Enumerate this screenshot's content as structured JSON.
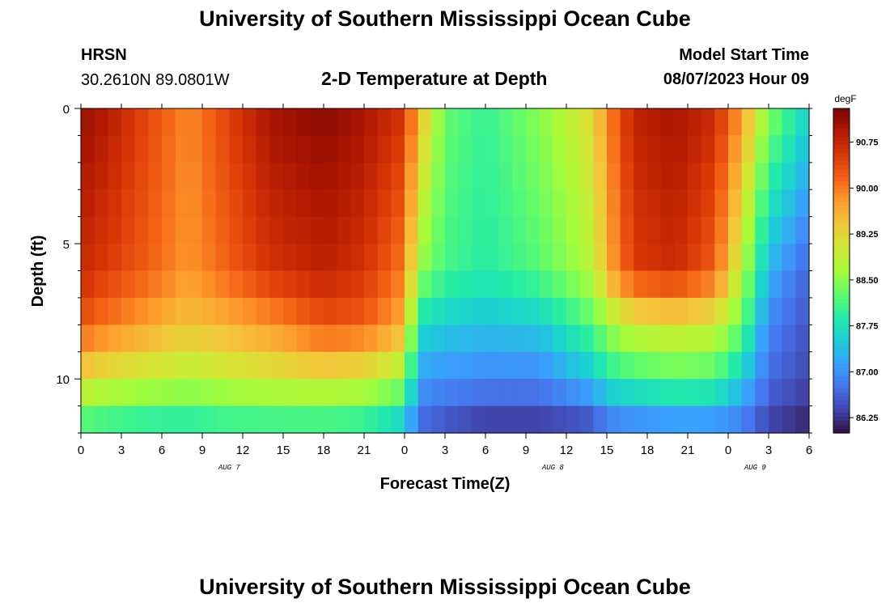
{
  "page": {
    "title_top": "University of Southern Mississippi Ocean Cube",
    "title_bottom": "University of Southern Mississippi Ocean Cube",
    "station": "HRSN",
    "coords": "30.2610N  89.0801W",
    "plot_title": "2-D Temperature at Depth",
    "model_start_label": "Model Start Time",
    "model_start_value": "08/07/2023 Hour 09"
  },
  "chart_data": {
    "type": "heatmap",
    "title": "2-D Temperature at Depth",
    "xlabel": "Forecast Time(Z)",
    "ylabel": "Depth (ft)",
    "colorbar_label": "degF",
    "x_hours": {
      "start": 0,
      "end": 54,
      "step": 1
    },
    "xlim": [
      0,
      54
    ],
    "ylim": [
      0,
      12
    ],
    "x_tick_labels": [
      "0",
      "3",
      "6",
      "9",
      "12",
      "15",
      "18",
      "21",
      "0",
      "3",
      "6",
      "9",
      "12",
      "15",
      "18",
      "21",
      "0",
      "3",
      "6"
    ],
    "date_labels": [
      {
        "hour": 11,
        "label": "AUG 7"
      },
      {
        "hour": 35,
        "label": "AUG 8"
      },
      {
        "hour": 50,
        "label": "AUG 9"
      }
    ],
    "y_ticks": [
      {
        "value": 0,
        "label": "0"
      },
      {
        "value": 5,
        "label": "5"
      },
      {
        "value": 10,
        "label": "10"
      }
    ],
    "depth_levels": [
      0,
      1,
      2,
      3,
      4,
      5,
      6,
      7,
      8,
      9,
      10,
      11,
      12
    ],
    "temperature_range": [
      86.0,
      91.3
    ],
    "colorbar_ticks": [
      "86.25",
      "87.00",
      "87.75",
      "88.50",
      "89.25",
      "90.00",
      "90.75"
    ],
    "colorbar_values": [
      86.25,
      87.0,
      87.75,
      88.5,
      89.25,
      90.0,
      90.75
    ],
    "colorbar_colors": [
      "#30123b",
      "#4145ab",
      "#4675ed",
      "#39a2fc",
      "#1bcfd4",
      "#24eca6",
      "#61fc6c",
      "#a4fc3b",
      "#d1e834",
      "#f3c63a",
      "#fe9b2d",
      "#f36315",
      "#d93806",
      "#b11901",
      "#7a0402"
    ],
    "temperature_profiles": {
      "hours": [
        0,
        2,
        5,
        8,
        11,
        14,
        18,
        21,
        24,
        25,
        27,
        30,
        34,
        38,
        39,
        41,
        44,
        47,
        49,
        51,
        54
      ],
      "depth_0_ft": [
        91.1,
        90.9,
        90.4,
        89.9,
        90.5,
        91.0,
        91.2,
        91.0,
        90.6,
        89.6,
        88.3,
        88.0,
        88.5,
        89.2,
        89.9,
        90.8,
        91.0,
        90.7,
        89.8,
        88.5,
        87.6
      ],
      "depth_6_ft": [
        90.7,
        90.5,
        90.2,
        89.8,
        90.2,
        90.6,
        90.8,
        90.6,
        90.0,
        88.6,
        88.1,
        87.9,
        88.2,
        88.8,
        89.6,
        90.5,
        90.7,
        90.2,
        88.8,
        87.3,
        86.6
      ],
      "depth_8_ft": [
        90.3,
        90.0,
        89.7,
        89.4,
        89.6,
        89.8,
        90.3,
        90.2,
        89.6,
        87.7,
        87.5,
        87.4,
        87.5,
        88.2,
        88.6,
        89.0,
        89.1,
        89.0,
        88.3,
        86.9,
        86.5
      ],
      "depth_10_ft": [
        89.2,
        89.0,
        88.9,
        88.8,
        88.9,
        89.0,
        89.1,
        89.0,
        88.6,
        87.1,
        87.0,
        86.9,
        86.9,
        87.4,
        87.8,
        88.0,
        88.2,
        88.1,
        87.5,
        86.7,
        86.4
      ],
      "depth_12_ft": [
        87.9,
        87.8,
        87.7,
        87.7,
        87.8,
        87.8,
        87.8,
        87.7,
        87.3,
        86.6,
        86.4,
        86.2,
        86.2,
        86.3,
        86.6,
        86.7,
        86.8,
        86.8,
        86.7,
        86.3,
        86.1
      ]
    }
  }
}
